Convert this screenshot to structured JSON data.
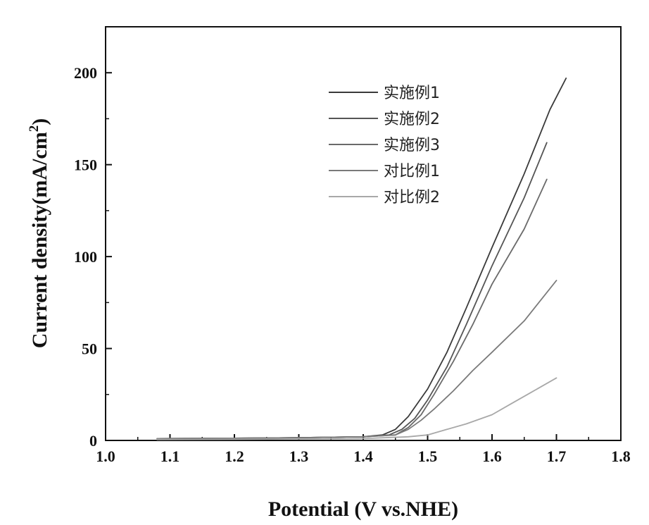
{
  "chart_data": {
    "type": "line",
    "title": "",
    "xlabel": "Potential (V vs.NHE)",
    "ylabel_main": "Current density(mA/cm",
    "ylabel_sup": "2",
    "ylabel_tail": ")",
    "xlim": [
      1.0,
      1.8
    ],
    "ylim": [
      0,
      225
    ],
    "xticks": [
      "1.0",
      "1.1",
      "1.2",
      "1.3",
      "1.4",
      "1.5",
      "1.6",
      "1.7",
      "1.8"
    ],
    "xtick_values": [
      1.0,
      1.1,
      1.2,
      1.3,
      1.4,
      1.5,
      1.6,
      1.7,
      1.8
    ],
    "yticks": [
      "0",
      "50",
      "100",
      "150",
      "200"
    ],
    "ytick_values": [
      0,
      50,
      100,
      150,
      200
    ],
    "grid": false,
    "legend_position": "top-right",
    "series": [
      {
        "name": "实施例1",
        "color": "#3a3a3a",
        "x": [
          1.08,
          1.2,
          1.3,
          1.4,
          1.43,
          1.45,
          1.47,
          1.5,
          1.53,
          1.56,
          1.6,
          1.65,
          1.69,
          1.715
        ],
        "y": [
          1.0,
          1.2,
          1.5,
          2,
          3,
          6,
          13,
          28,
          48,
          72,
          105,
          145,
          180,
          197
        ]
      },
      {
        "name": "实施例2",
        "color": "#555555",
        "x": [
          1.08,
          1.2,
          1.3,
          1.4,
          1.44,
          1.46,
          1.48,
          1.5,
          1.53,
          1.56,
          1.6,
          1.65,
          1.685
        ],
        "y": [
          1.0,
          1.2,
          1.5,
          2,
          3,
          6,
          12,
          22,
          40,
          63,
          95,
          132,
          162
        ]
      },
      {
        "name": "实施例3",
        "color": "#6a6a6a",
        "x": [
          1.08,
          1.2,
          1.3,
          1.4,
          1.45,
          1.47,
          1.49,
          1.51,
          1.54,
          1.57,
          1.6,
          1.65,
          1.685
        ],
        "y": [
          1.0,
          1.2,
          1.5,
          2,
          3,
          7,
          14,
          25,
          43,
          63,
          85,
          115,
          142
        ]
      },
      {
        "name": "对比例1",
        "color": "#7a7a7a",
        "x": [
          1.08,
          1.2,
          1.3,
          1.4,
          1.45,
          1.47,
          1.49,
          1.51,
          1.54,
          1.57,
          1.6,
          1.65,
          1.7
        ],
        "y": [
          1.0,
          1.2,
          1.5,
          2,
          3,
          6,
          11,
          17,
          27,
          38,
          48,
          65,
          87
        ]
      },
      {
        "name": "对比例2",
        "color": "#a8a8a8",
        "x": [
          1.08,
          1.2,
          1.3,
          1.4,
          1.47,
          1.5,
          1.53,
          1.56,
          1.6,
          1.63,
          1.66,
          1.7
        ],
        "y": [
          0.5,
          0.6,
          0.8,
          1,
          2,
          3,
          6,
          9,
          14,
          20,
          26,
          34
        ]
      }
    ]
  }
}
